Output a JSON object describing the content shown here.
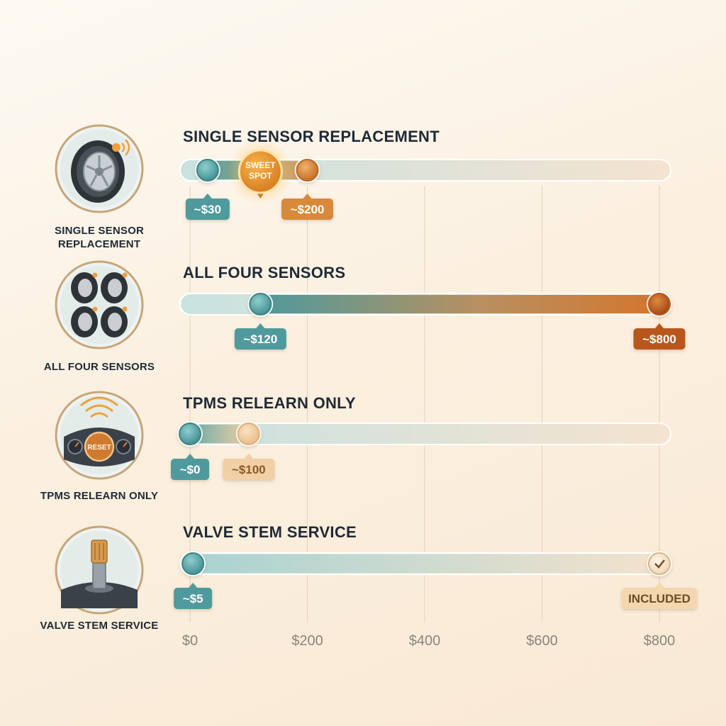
{
  "chart_data": {
    "type": "range-bar",
    "x_axis": {
      "min": 0,
      "max": 800,
      "ticks": [
        0,
        200,
        400,
        600,
        800
      ],
      "tick_labels": [
        "$0",
        "$200",
        "$400",
        "$600",
        "$800"
      ]
    },
    "grid": true,
    "rows": [
      {
        "title": "SINGLE SENSOR REPLACEMENT",
        "icon_label": "SINGLE SENSOR REPLACEMENT",
        "icon": "tire-sensor-icon",
        "low": 30,
        "high": 200,
        "low_label": "~$30",
        "high_label": "~$200",
        "marker": {
          "value": 120,
          "label": "SWEET SPOT"
        }
      },
      {
        "title": "ALL FOUR SENSORS",
        "icon_label": "ALL FOUR SENSORS",
        "icon": "four-tires-icon",
        "low": 120,
        "high": 800,
        "low_label": "~$120",
        "high_label": "~$800"
      },
      {
        "title": "TPMS RELEARN ONLY",
        "icon_label": "TPMS RELEARN ONLY",
        "icon": "dashboard-reset-icon",
        "icon_text": "RESET",
        "low": 0,
        "high": 100,
        "low_label": "~$0",
        "high_label": "~$100"
      },
      {
        "title": "VALVE STEM SERVICE",
        "icon_label": "VALVE STEM SERVICE",
        "icon": "valve-stem-icon",
        "low": 5,
        "high": 800,
        "low_label": "~$5",
        "high_label": "INCLUDED",
        "high_is_check": true
      }
    ],
    "colors": {
      "teal": "#4f9a9c",
      "teal_dark": "#3d8587",
      "orange": "#d9893a",
      "orange_dark": "#b9571d",
      "peach": "#f2cfa5",
      "track": "#cfe3e2"
    }
  }
}
